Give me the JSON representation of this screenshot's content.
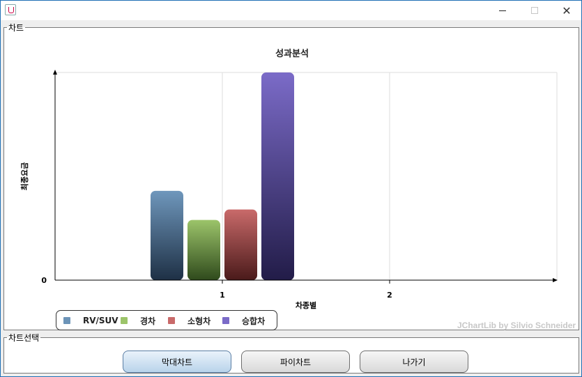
{
  "window": {
    "title": "",
    "minimize_label": "—",
    "maximize_label": "☐",
    "close_label": "✕"
  },
  "chart_panel": {
    "legend_label": "차트"
  },
  "chart_data": {
    "type": "bar",
    "title": "성과분석",
    "xlabel": "차종별",
    "ylabel": "최종요금",
    "x_ticks": [
      "1",
      "2"
    ],
    "y_ticks": [
      "0"
    ],
    "categories": [
      "1"
    ],
    "series": [
      {
        "name": "RV/SUV",
        "values": [
          43
        ],
        "color": "#4a7196"
      },
      {
        "name": "경차",
        "values": [
          29
        ],
        "color": "#7aa34c"
      },
      {
        "name": "소형차",
        "values": [
          34
        ],
        "color": "#a24444"
      },
      {
        "name": "승합차",
        "values": [
          100
        ],
        "color": "#5a4fa6"
      }
    ],
    "ylim": [
      0,
      100
    ],
    "grid": true,
    "legend_position": "bottom-left",
    "credit": "JChartLib by Silvio Schneider"
  },
  "select_panel": {
    "legend_label": "차트선택",
    "buttons": {
      "bar": "막대차트",
      "pie": "파이차트",
      "exit": "나가기"
    }
  }
}
